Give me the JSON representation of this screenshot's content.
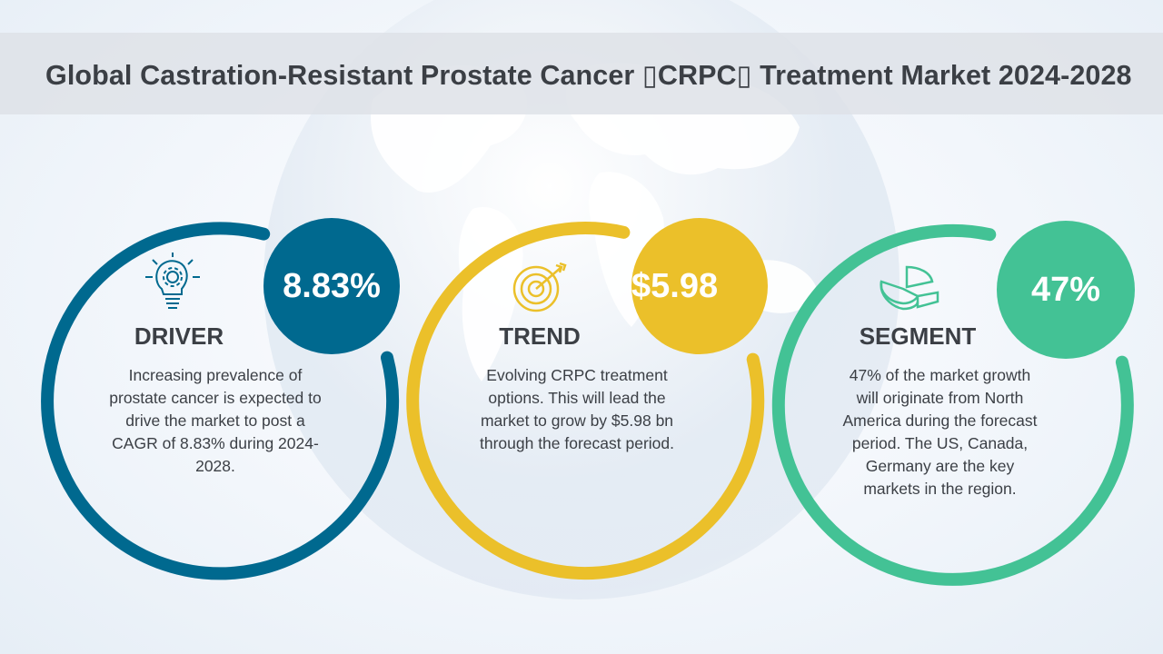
{
  "title": "Global Castration-Resistant Prostate Cancer ▯CRPC▯ Treatment Market 2024-2028",
  "colors": {
    "driver": "#00698f",
    "trend": "#ebc02a",
    "segment": "#43c295",
    "text": "#3b3f45"
  },
  "cards": [
    {
      "heading": "DRIVER",
      "value": "8.83%",
      "icon": "lightbulb-gear-icon",
      "description": "Increasing prevalence of prostate cancer is expected to drive the market to post a CAGR of 8.83% during 2024-2028."
    },
    {
      "heading": "TREND",
      "value": "$5.98",
      "icon": "target-arrow-icon",
      "description": "Evolving CRPC treatment options. This will lead the market to grow by $5.98 bn through the forecast period."
    },
    {
      "heading": "SEGMENT",
      "value": "47%",
      "icon": "pie-chart-icon",
      "description": "47% of the market growth will originate from North America during the forecast period. The US, Canada, Germany are the key markets in the region."
    }
  ]
}
